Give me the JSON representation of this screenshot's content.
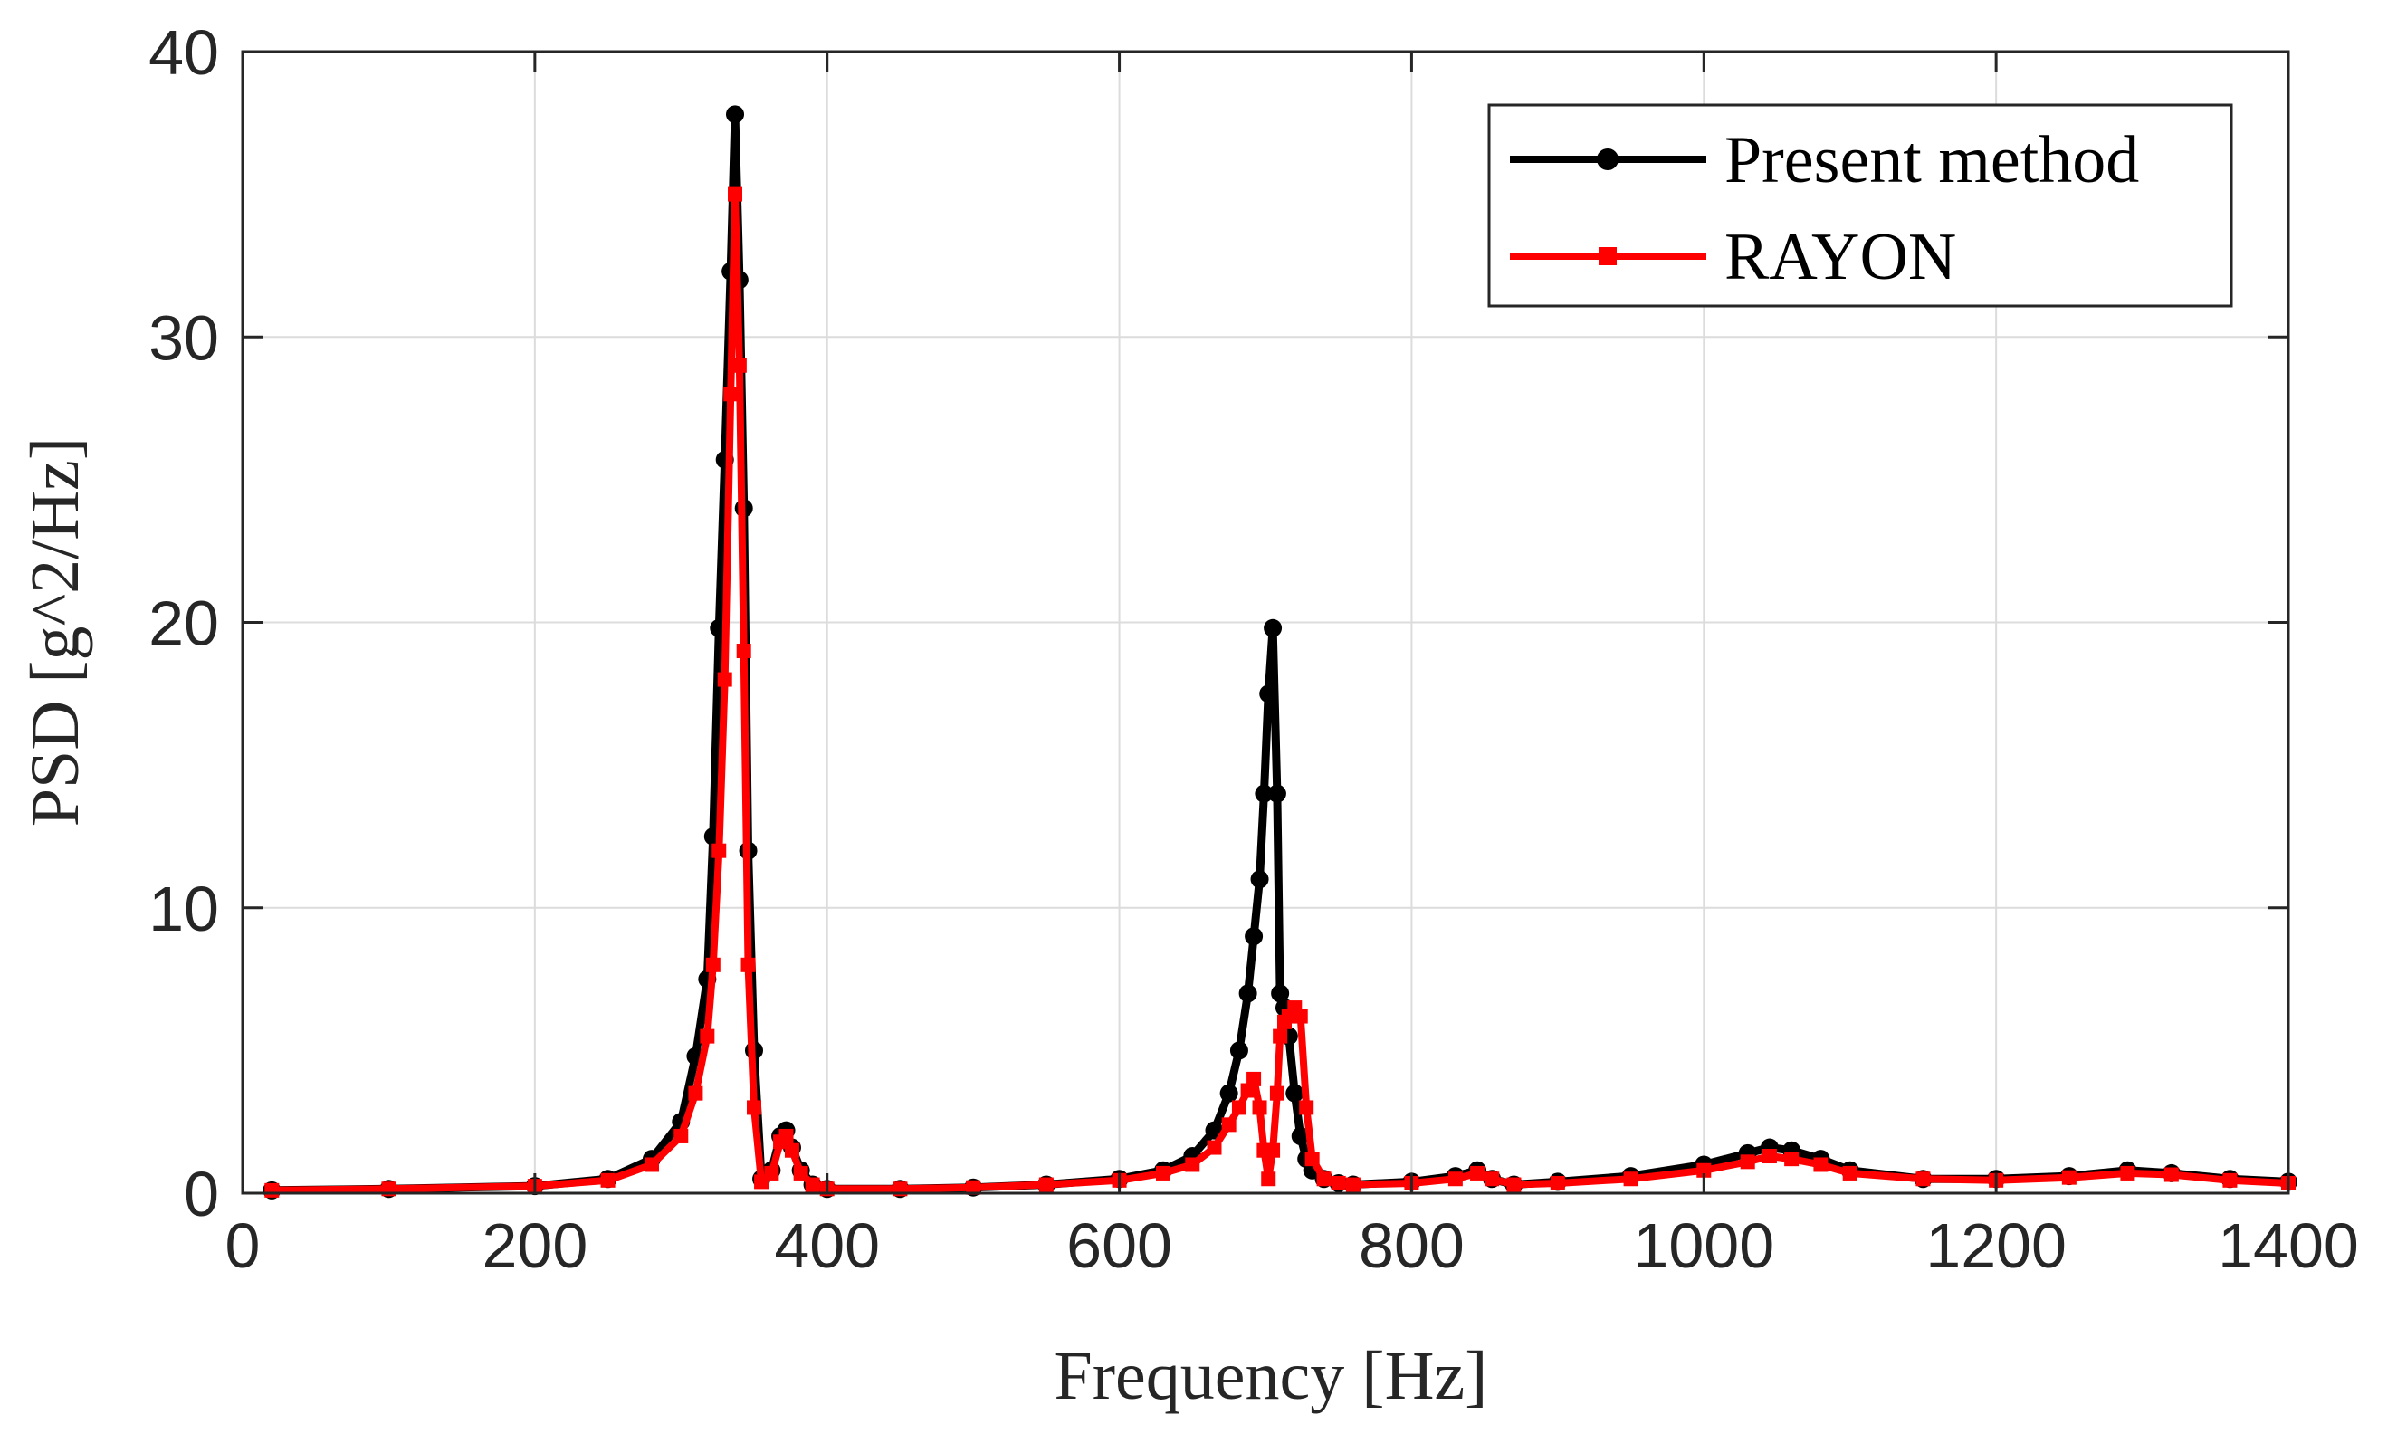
{
  "chart_data": {
    "type": "line",
    "title": "",
    "xlabel": "Frequency [Hz]",
    "ylabel": "PSD [g^2/Hz]",
    "xlim": [
      0,
      1400
    ],
    "ylim": [
      0,
      40
    ],
    "xticks": [
      0,
      200,
      400,
      600,
      800,
      1000,
      1200,
      1400
    ],
    "yticks": [
      0,
      10,
      20,
      30,
      40
    ],
    "xtick_labels": [
      "0",
      "200",
      "400",
      "600",
      "800",
      "1000",
      "1200",
      "1400"
    ],
    "ytick_labels": [
      "0",
      "10",
      "20",
      "30",
      "40"
    ],
    "grid": true,
    "legend_position": "top-right",
    "series": [
      {
        "name": "Present method",
        "color": "#000000",
        "marker": "circle",
        "x": [
          20,
          100,
          200,
          250,
          280,
          300,
          310,
          318,
          322,
          326,
          330,
          334,
          337,
          340,
          343,
          346,
          350,
          355,
          362,
          368,
          372,
          376,
          382,
          390,
          400,
          450,
          500,
          550,
          600,
          630,
          650,
          665,
          675,
          682,
          688,
          692,
          696,
          699,
          702,
          705,
          708,
          710,
          713,
          716,
          720,
          724,
          728,
          732,
          740,
          750,
          760,
          800,
          830,
          845,
          855,
          870,
          900,
          950,
          1000,
          1030,
          1045,
          1060,
          1080,
          1100,
          1150,
          1200,
          1250,
          1290,
          1320,
          1360,
          1400
        ],
        "values": [
          0.1,
          0.15,
          0.25,
          0.5,
          1.2,
          2.5,
          4.8,
          7.5,
          12.5,
          19.8,
          25.7,
          32.3,
          37.8,
          32.0,
          24.0,
          12.0,
          5.0,
          0.5,
          0.8,
          2.0,
          2.2,
          1.6,
          0.8,
          0.3,
          0.15,
          0.15,
          0.2,
          0.3,
          0.5,
          0.8,
          1.3,
          2.2,
          3.5,
          5.0,
          7.0,
          9.0,
          11.0,
          14.0,
          17.5,
          19.8,
          14.0,
          7.0,
          6.5,
          5.5,
          3.5,
          2.0,
          1.2,
          0.8,
          0.5,
          0.35,
          0.3,
          0.4,
          0.6,
          0.8,
          0.5,
          0.3,
          0.4,
          0.6,
          1.0,
          1.4,
          1.6,
          1.5,
          1.2,
          0.8,
          0.5,
          0.5,
          0.6,
          0.8,
          0.7,
          0.5,
          0.4
        ]
      },
      {
        "name": "RAYON",
        "color": "#ff0000",
        "marker": "square",
        "x": [
          20,
          100,
          200,
          250,
          280,
          300,
          310,
          318,
          322,
          326,
          330,
          334,
          337,
          340,
          343,
          346,
          350,
          355,
          362,
          368,
          372,
          376,
          382,
          390,
          400,
          450,
          500,
          550,
          600,
          630,
          650,
          665,
          675,
          682,
          688,
          692,
          696,
          699,
          702,
          705,
          708,
          710,
          713,
          716,
          720,
          724,
          728,
          732,
          740,
          750,
          760,
          800,
          830,
          845,
          855,
          870,
          900,
          950,
          1000,
          1030,
          1045,
          1060,
          1080,
          1100,
          1150,
          1200,
          1250,
          1290,
          1320,
          1360,
          1400
        ],
        "values": [
          0.1,
          0.15,
          0.25,
          0.45,
          1.0,
          2.0,
          3.5,
          5.5,
          8.0,
          12.0,
          18.0,
          28.0,
          35.0,
          29.0,
          19.0,
          8.0,
          3.0,
          0.4,
          0.7,
          1.8,
          2.0,
          1.5,
          0.7,
          0.3,
          0.15,
          0.15,
          0.2,
          0.3,
          0.45,
          0.7,
          1.0,
          1.6,
          2.4,
          3.0,
          3.6,
          4.0,
          3.0,
          1.5,
          0.5,
          1.5,
          3.5,
          5.5,
          6.0,
          6.2,
          6.5,
          6.2,
          3.0,
          1.2,
          0.5,
          0.35,
          0.3,
          0.35,
          0.5,
          0.7,
          0.5,
          0.3,
          0.35,
          0.5,
          0.8,
          1.1,
          1.3,
          1.2,
          1.0,
          0.7,
          0.5,
          0.45,
          0.55,
          0.7,
          0.65,
          0.45,
          0.35
        ]
      }
    ]
  }
}
